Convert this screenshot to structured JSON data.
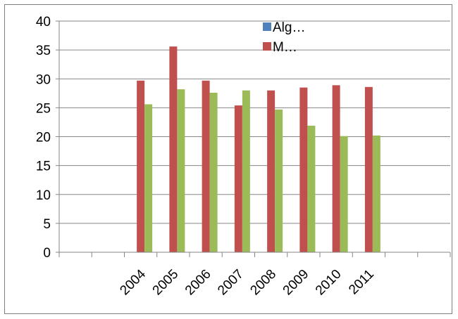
{
  "chart_data": {
    "type": "bar",
    "title": "",
    "xlabel": "",
    "ylabel": "",
    "ylim": [
      0,
      40
    ],
    "yticks": [
      0,
      5,
      10,
      15,
      20,
      25,
      30,
      35,
      40
    ],
    "grid": true,
    "legend_position": "top-right",
    "categories": [
      "",
      "",
      "2004",
      "2005",
      "2006",
      "2007",
      "2008",
      "2009",
      "2010",
      "2011",
      "",
      ""
    ],
    "series": [
      {
        "name": "Alg…",
        "color": "#4f81bd",
        "values": [
          null,
          null,
          null,
          null,
          null,
          null,
          null,
          null,
          null,
          null,
          null,
          null
        ]
      },
      {
        "name": "M…",
        "color": "#c0504d",
        "values": [
          null,
          null,
          29.7,
          35.6,
          29.7,
          25.4,
          28.0,
          28.5,
          28.9,
          28.6,
          null,
          null
        ]
      },
      {
        "name": "",
        "color": "#9bbb59",
        "values": [
          null,
          null,
          25.6,
          28.2,
          27.6,
          28.0,
          24.7,
          21.9,
          20.1,
          20.2,
          null,
          null
        ]
      }
    ]
  }
}
